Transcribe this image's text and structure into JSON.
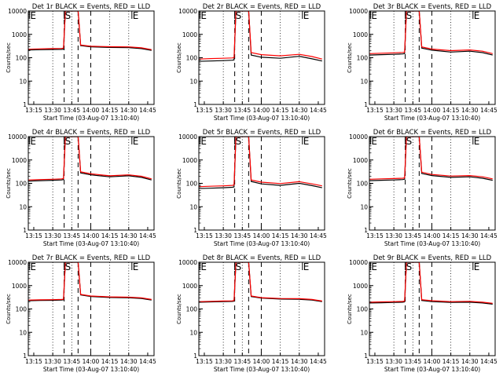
{
  "x_axis": {
    "label": "Start Time (03-Aug-07 13:10:40)",
    "tick_labels": [
      "13:15",
      "13:30",
      "13:45",
      "14:00",
      "14:15",
      "14:30",
      "14:45"
    ],
    "tick_values_min": [
      15,
      30,
      45,
      60,
      75,
      90,
      105
    ],
    "xlim_min": [
      10.67,
      110
    ]
  },
  "y_axis": {
    "label": "Counts/sec",
    "scale": "log",
    "tick_labels": [
      "1",
      "10",
      "100",
      "1000",
      "10000"
    ],
    "tick_values": [
      1,
      10,
      100,
      1000,
      10000
    ],
    "ylim": [
      1,
      10000
    ]
  },
  "colors": {
    "events": "#000000",
    "lld": "#ff0000"
  },
  "markers": [
    {
      "label": "E",
      "x_min": 11.5
    },
    {
      "label": "S",
      "x_min": 39
    },
    {
      "label": "E",
      "x_min": 92.5
    }
  ],
  "guide_lines": {
    "dotted_x_min": [
      30,
      45,
      75,
      90
    ],
    "dashed_x_min": [
      39,
      50,
      60
    ]
  },
  "grid": "dotted-vertical",
  "chart_data": [
    {
      "type": "line",
      "title": "Det 1r BLACK = Events, RED = LLD",
      "series": [
        {
          "name": "Events",
          "x": [
            11,
            20,
            30,
            37,
            38.5,
            40,
            47,
            50,
            52,
            60,
            75,
            90,
            100,
            108
          ],
          "y": [
            215,
            220,
            225,
            228,
            230,
            10000,
            10000,
            10000,
            330,
            290,
            275,
            270,
            245,
            205
          ]
        },
        {
          "name": "LLD",
          "x": [
            11,
            20,
            30,
            37,
            38.5,
            40,
            47,
            50,
            52,
            60,
            75,
            90,
            100,
            108
          ],
          "y": [
            230,
            240,
            245,
            250,
            255,
            10000,
            10000,
            10000,
            350,
            310,
            295,
            290,
            265,
            222
          ]
        }
      ]
    },
    {
      "type": "line",
      "title": "Det 2r BLACK = Events, RED = LLD",
      "series": [
        {
          "name": "Events",
          "x": [
            11,
            20,
            30,
            37,
            38.5,
            40,
            47,
            50,
            52,
            60,
            75,
            90,
            100,
            108
          ],
          "y": [
            70,
            72,
            75,
            78,
            80,
            10000,
            10000,
            10000,
            130,
            105,
            95,
            115,
            90,
            72
          ]
        },
        {
          "name": "LLD",
          "x": [
            11,
            20,
            30,
            37,
            38.5,
            40,
            47,
            50,
            52,
            60,
            75,
            90,
            100,
            108
          ],
          "y": [
            88,
            92,
            95,
            98,
            100,
            10000,
            10000,
            10000,
            165,
            135,
            120,
            140,
            112,
            88
          ]
        }
      ]
    },
    {
      "type": "line",
      "title": "Det 3r BLACK = Events, RED = LLD",
      "series": [
        {
          "name": "Events",
          "x": [
            11,
            20,
            30,
            37,
            38.5,
            40,
            47,
            50,
            52,
            60,
            75,
            90,
            100,
            108
          ],
          "y": [
            130,
            135,
            140,
            145,
            150,
            10000,
            10000,
            10000,
            260,
            210,
            175,
            190,
            165,
            130
          ]
        },
        {
          "name": "LLD",
          "x": [
            11,
            20,
            30,
            37,
            38.5,
            40,
            47,
            50,
            52,
            60,
            75,
            90,
            100,
            108
          ],
          "y": [
            150,
            155,
            162,
            168,
            172,
            10000,
            10000,
            10000,
            290,
            235,
            200,
            215,
            190,
            150
          ]
        }
      ]
    },
    {
      "type": "line",
      "title": "Det 4r BLACK = Events, RED = LLD",
      "series": [
        {
          "name": "Events",
          "x": [
            11,
            20,
            30,
            37,
            38.5,
            40,
            47,
            50,
            52,
            60,
            75,
            90,
            100,
            108
          ],
          "y": [
            125,
            130,
            135,
            140,
            145,
            10000,
            10000,
            10000,
            280,
            230,
            190,
            210,
            180,
            140
          ]
        },
        {
          "name": "LLD",
          "x": [
            11,
            20,
            30,
            37,
            38.5,
            40,
            47,
            50,
            52,
            60,
            75,
            90,
            100,
            108
          ],
          "y": [
            140,
            145,
            150,
            155,
            160,
            10000,
            10000,
            10000,
            310,
            255,
            210,
            230,
            200,
            155
          ]
        }
      ]
    },
    {
      "type": "line",
      "title": "Det 5r BLACK = Events, RED = LLD",
      "series": [
        {
          "name": "Events",
          "x": [
            11,
            20,
            30,
            37,
            38.5,
            40,
            47,
            50,
            52,
            60,
            75,
            90,
            100,
            108
          ],
          "y": [
            60,
            62,
            65,
            68,
            70,
            10000,
            10000,
            10000,
            120,
            95,
            82,
            100,
            80,
            65
          ]
        },
        {
          "name": "LLD",
          "x": [
            11,
            20,
            30,
            37,
            38.5,
            40,
            47,
            50,
            52,
            60,
            75,
            90,
            100,
            108
          ],
          "y": [
            72,
            75,
            78,
            82,
            85,
            10000,
            10000,
            10000,
            140,
            112,
            98,
            118,
            95,
            78
          ]
        }
      ]
    },
    {
      "type": "line",
      "title": "Det 6r BLACK = Events, RED = LLD",
      "series": [
        {
          "name": "Events",
          "x": [
            11,
            20,
            30,
            37,
            38.5,
            40,
            47,
            50,
            52,
            60,
            75,
            90,
            100,
            108
          ],
          "y": [
            130,
            135,
            140,
            145,
            150,
            10000,
            10000,
            10000,
            265,
            215,
            180,
            190,
            165,
            135
          ]
        },
        {
          "name": "LLD",
          "x": [
            11,
            20,
            30,
            37,
            38.5,
            40,
            47,
            50,
            52,
            60,
            75,
            90,
            100,
            108
          ],
          "y": [
            150,
            155,
            160,
            165,
            170,
            10000,
            10000,
            10000,
            300,
            240,
            205,
            215,
            190,
            155
          ]
        }
      ]
    },
    {
      "type": "line",
      "title": "Det 7r BLACK = Events, RED = LLD",
      "series": [
        {
          "name": "Events",
          "x": [
            11,
            20,
            30,
            37,
            38.5,
            40,
            47,
            50,
            52,
            60,
            75,
            90,
            100,
            108
          ],
          "y": [
            225,
            230,
            235,
            240,
            245,
            10000,
            10000,
            10000,
            400,
            340,
            310,
            300,
            280,
            240
          ]
        },
        {
          "name": "LLD",
          "x": [
            11,
            20,
            30,
            37,
            38.5,
            40,
            47,
            50,
            52,
            60,
            75,
            90,
            100,
            108
          ],
          "y": [
            240,
            245,
            250,
            255,
            260,
            10000,
            10000,
            10000,
            420,
            360,
            330,
            320,
            300,
            255
          ]
        }
      ]
    },
    {
      "type": "line",
      "title": "Det 8r BLACK = Events, RED = LLD",
      "series": [
        {
          "name": "Events",
          "x": [
            11,
            20,
            30,
            37,
            38.5,
            40,
            47,
            50,
            52,
            60,
            75,
            90,
            100,
            108
          ],
          "y": [
            195,
            200,
            205,
            210,
            215,
            10000,
            10000,
            10000,
            340,
            290,
            265,
            260,
            240,
            205
          ]
        },
        {
          "name": "LLD",
          "x": [
            11,
            20,
            30,
            37,
            38.5,
            40,
            47,
            50,
            52,
            60,
            75,
            90,
            100,
            108
          ],
          "y": [
            205,
            212,
            218,
            222,
            228,
            10000,
            10000,
            10000,
            360,
            305,
            280,
            275,
            255,
            218
          ]
        }
      ]
    },
    {
      "type": "line",
      "title": "Det 9r BLACK = Events, RED = LLD",
      "series": [
        {
          "name": "Events",
          "x": [
            11,
            20,
            30,
            37,
            38.5,
            40,
            47,
            50,
            52,
            60,
            75,
            90,
            100,
            108
          ],
          "y": [
            180,
            185,
            190,
            195,
            200,
            10000,
            10000,
            10000,
            230,
            205,
            190,
            195,
            180,
            160
          ]
        },
        {
          "name": "LLD",
          "x": [
            11,
            20,
            30,
            37,
            38.5,
            40,
            47,
            50,
            52,
            60,
            75,
            90,
            100,
            108
          ],
          "y": [
            195,
            200,
            205,
            210,
            215,
            10000,
            10000,
            10000,
            250,
            225,
            205,
            212,
            195,
            175
          ]
        }
      ]
    }
  ]
}
